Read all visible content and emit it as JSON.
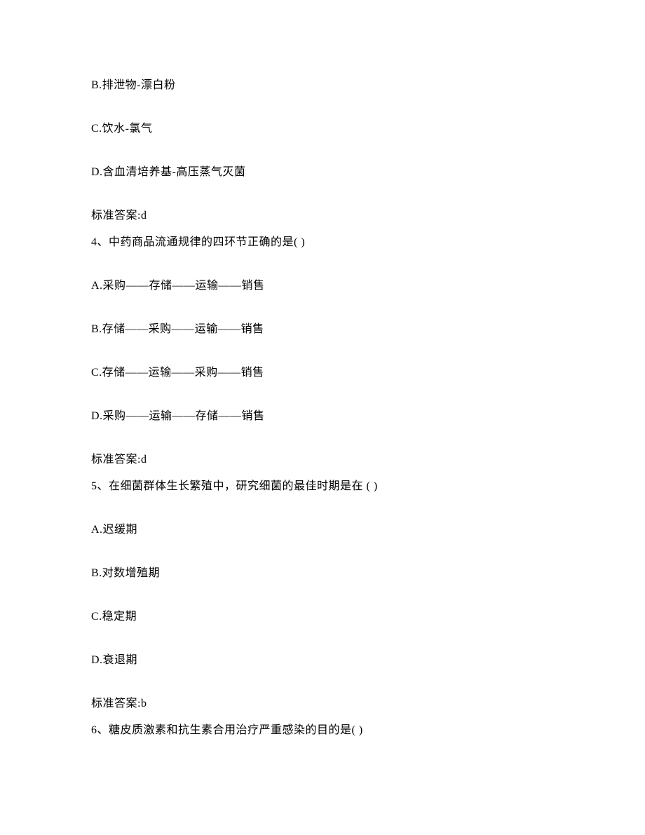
{
  "q3": {
    "optB": "B.排泄物-漂白粉",
    "optC": "C.饮水-氯气",
    "optD": "D.含血清培养基-高压蒸气灭菌",
    "answer": "标准答案:d"
  },
  "q4": {
    "stem": "4、中药商品流通规律的四环节正确的是( )",
    "optA": "A.采购——存储——运输——销售",
    "optB": "B.存储——采购——运输——销售",
    "optC": "C.存储——运输——采购——销售",
    "optD": "D.采购——运输——存储——销售",
    "answer": "标准答案:d"
  },
  "q5": {
    "stem": "5、在细菌群体生长繁殖中，研究细菌的最佳时期是在 ( )",
    "optA": "A.迟缓期",
    "optB": "B.对数增殖期",
    "optC": "C.稳定期",
    "optD": "D.衰退期",
    "answer": "标准答案:b"
  },
  "q6": {
    "stem": "6、糖皮质激素和抗生素合用治疗严重感染的目的是( )"
  }
}
